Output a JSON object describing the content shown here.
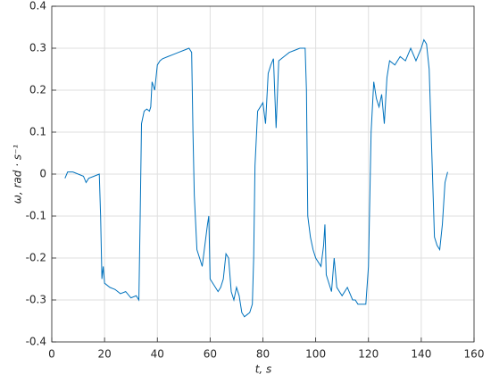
{
  "chart_data": {
    "type": "line",
    "xlabel": "t, s",
    "ylabel": "ω, rad · s⁻¹",
    "xlim": [
      0,
      160
    ],
    "xticks": [
      0,
      20,
      40,
      60,
      80,
      100,
      120,
      140,
      160
    ],
    "ylim": [
      -0.4,
      0.4
    ],
    "yticks": [
      -0.4,
      -0.3,
      -0.2,
      -0.1,
      0,
      0.1,
      0.2,
      0.3,
      0.4
    ],
    "grid": true,
    "series": [
      {
        "color": "#0072bd",
        "x": [
          5,
          6,
          8,
          10,
          12,
          13,
          14,
          16,
          18,
          18.5,
          19,
          19.5,
          20,
          22,
          24,
          26,
          28,
          30,
          32,
          33,
          33.5,
          34,
          35,
          36,
          37,
          37.5,
          38,
          39,
          40,
          41,
          42,
          44,
          46,
          48,
          50,
          52,
          53,
          53.5,
          54,
          55,
          56,
          57,
          58,
          59,
          59.5,
          60,
          62,
          63,
          64,
          65,
          66,
          67,
          68,
          69,
          70,
          71,
          72,
          73,
          74,
          75,
          76,
          76.5,
          77,
          78,
          79,
          80,
          81,
          82,
          83,
          84,
          85,
          86,
          88,
          90,
          92,
          94,
          96,
          96.5,
          97,
          98,
          99,
          100,
          101,
          102,
          103,
          103.5,
          104,
          106,
          107,
          108,
          110,
          112,
          114,
          115,
          116,
          118,
          119,
          120,
          121,
          122,
          123,
          124,
          125,
          126,
          127,
          128,
          130,
          132,
          134,
          136,
          138,
          140,
          141,
          142,
          143,
          144,
          145,
          146,
          147,
          148,
          149,
          150
        ],
        "values": [
          -0.01,
          0.005,
          0.005,
          0,
          -0.005,
          -0.02,
          -0.01,
          -0.005,
          0,
          -0.1,
          -0.25,
          -0.22,
          -0.26,
          -0.27,
          -0.275,
          -0.285,
          -0.28,
          -0.295,
          -0.29,
          -0.3,
          -0.1,
          0.12,
          0.15,
          0.155,
          0.15,
          0.16,
          0.22,
          0.2,
          0.26,
          0.27,
          0.275,
          0.28,
          0.285,
          0.29,
          0.295,
          0.3,
          0.29,
          0.1,
          -0.05,
          -0.18,
          -0.2,
          -0.22,
          -0.17,
          -0.12,
          -0.1,
          -0.25,
          -0.27,
          -0.28,
          -0.27,
          -0.25,
          -0.19,
          -0.2,
          -0.28,
          -0.3,
          -0.27,
          -0.29,
          -0.33,
          -0.34,
          -0.335,
          -0.33,
          -0.31,
          -0.2,
          0.02,
          0.15,
          0.16,
          0.17,
          0.12,
          0.24,
          0.26,
          0.275,
          0.11,
          0.27,
          0.28,
          0.29,
          0.295,
          0.3,
          0.3,
          0.2,
          -0.1,
          -0.15,
          -0.18,
          -0.2,
          -0.21,
          -0.22,
          -0.17,
          -0.12,
          -0.24,
          -0.28,
          -0.2,
          -0.27,
          -0.29,
          -0.27,
          -0.3,
          -0.3,
          -0.31,
          -0.31,
          -0.31,
          -0.22,
          0.1,
          0.22,
          0.18,
          0.16,
          0.19,
          0.12,
          0.23,
          0.27,
          0.26,
          0.28,
          0.27,
          0.3,
          0.27,
          0.3,
          0.32,
          0.31,
          0.25,
          0.05,
          -0.15,
          -0.17,
          -0.18,
          -0.12,
          -0.02,
          0.005
        ]
      }
    ]
  }
}
